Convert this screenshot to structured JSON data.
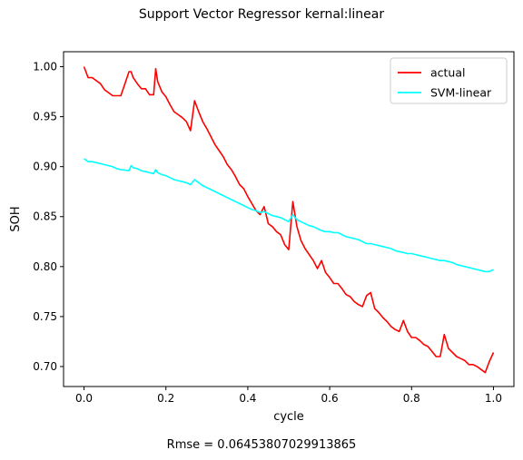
{
  "chart_data": {
    "type": "line",
    "title": "Support Vector Regressor kernal:linear",
    "xlabel": "cycle",
    "ylabel": "SOH",
    "xlim": [
      -0.05,
      1.05
    ],
    "ylim": [
      0.68,
      1.015
    ],
    "x_ticks": [
      0.0,
      0.2,
      0.4,
      0.6,
      0.8,
      1.0
    ],
    "x_tick_labels": [
      "0.0",
      "0.2",
      "0.4",
      "0.6",
      "0.8",
      "1.0"
    ],
    "y_ticks": [
      0.7,
      0.75,
      0.8,
      0.85,
      0.9,
      0.95,
      1.0
    ],
    "y_tick_labels": [
      "0.70",
      "0.75",
      "0.80",
      "0.85",
      "0.90",
      "0.95",
      "1.00"
    ],
    "grid": false,
    "legend_position": "top-right",
    "series": [
      {
        "name": "actual",
        "color": "#ff0000",
        "x": [
          0.0,
          0.01,
          0.02,
          0.04,
          0.05,
          0.07,
          0.08,
          0.09,
          0.11,
          0.115,
          0.12,
          0.13,
          0.14,
          0.15,
          0.16,
          0.17,
          0.175,
          0.18,
          0.19,
          0.2,
          0.21,
          0.22,
          0.23,
          0.24,
          0.25,
          0.26,
          0.27,
          0.28,
          0.29,
          0.3,
          0.31,
          0.32,
          0.33,
          0.34,
          0.35,
          0.36,
          0.37,
          0.38,
          0.39,
          0.4,
          0.41,
          0.42,
          0.43,
          0.44,
          0.45,
          0.46,
          0.47,
          0.48,
          0.49,
          0.5,
          0.51,
          0.52,
          0.53,
          0.54,
          0.55,
          0.56,
          0.57,
          0.58,
          0.59,
          0.6,
          0.61,
          0.62,
          0.63,
          0.64,
          0.65,
          0.66,
          0.67,
          0.68,
          0.69,
          0.7,
          0.71,
          0.72,
          0.73,
          0.74,
          0.75,
          0.76,
          0.77,
          0.78,
          0.79,
          0.8,
          0.81,
          0.82,
          0.83,
          0.84,
          0.85,
          0.86,
          0.87,
          0.88,
          0.89,
          0.9,
          0.91,
          0.92,
          0.93,
          0.94,
          0.95,
          0.96,
          0.97,
          0.98,
          0.99,
          1.0
        ],
        "values": [
          1.0,
          0.989,
          0.989,
          0.983,
          0.977,
          0.971,
          0.971,
          0.971,
          0.995,
          0.995,
          0.989,
          0.983,
          0.978,
          0.978,
          0.972,
          0.972,
          0.998,
          0.985,
          0.975,
          0.97,
          0.962,
          0.955,
          0.952,
          0.949,
          0.945,
          0.936,
          0.966,
          0.955,
          0.945,
          0.938,
          0.93,
          0.922,
          0.916,
          0.91,
          0.902,
          0.897,
          0.89,
          0.882,
          0.878,
          0.87,
          0.863,
          0.856,
          0.852,
          0.86,
          0.843,
          0.84,
          0.835,
          0.832,
          0.822,
          0.817,
          0.865,
          0.84,
          0.826,
          0.818,
          0.812,
          0.806,
          0.798,
          0.806,
          0.794,
          0.789,
          0.783,
          0.783,
          0.778,
          0.772,
          0.77,
          0.765,
          0.762,
          0.76,
          0.771,
          0.774,
          0.758,
          0.754,
          0.749,
          0.745,
          0.74,
          0.737,
          0.735,
          0.746,
          0.735,
          0.729,
          0.729,
          0.726,
          0.722,
          0.72,
          0.715,
          0.71,
          0.71,
          0.732,
          0.718,
          0.714,
          0.71,
          0.708,
          0.706,
          0.702,
          0.702,
          0.7,
          0.697,
          0.694,
          0.705,
          0.714
        ]
      },
      {
        "name": "SVM-linear",
        "color": "#00ffff",
        "x": [
          0.0,
          0.01,
          0.02,
          0.04,
          0.05,
          0.07,
          0.08,
          0.09,
          0.11,
          0.115,
          0.12,
          0.13,
          0.14,
          0.15,
          0.16,
          0.17,
          0.175,
          0.18,
          0.19,
          0.2,
          0.21,
          0.22,
          0.23,
          0.24,
          0.25,
          0.26,
          0.27,
          0.28,
          0.29,
          0.3,
          0.31,
          0.32,
          0.33,
          0.34,
          0.35,
          0.36,
          0.37,
          0.38,
          0.39,
          0.4,
          0.41,
          0.42,
          0.43,
          0.44,
          0.45,
          0.46,
          0.47,
          0.48,
          0.49,
          0.5,
          0.51,
          0.52,
          0.53,
          0.54,
          0.55,
          0.56,
          0.57,
          0.58,
          0.59,
          0.6,
          0.61,
          0.62,
          0.63,
          0.64,
          0.65,
          0.66,
          0.67,
          0.68,
          0.69,
          0.7,
          0.71,
          0.72,
          0.73,
          0.74,
          0.75,
          0.76,
          0.77,
          0.78,
          0.79,
          0.8,
          0.81,
          0.82,
          0.83,
          0.84,
          0.85,
          0.86,
          0.87,
          0.88,
          0.89,
          0.9,
          0.91,
          0.92,
          0.93,
          0.94,
          0.95,
          0.96,
          0.97,
          0.98,
          0.99,
          1.0
        ],
        "values": [
          0.908,
          0.905,
          0.905,
          0.903,
          0.902,
          0.9,
          0.898,
          0.897,
          0.896,
          0.901,
          0.899,
          0.898,
          0.896,
          0.895,
          0.894,
          0.893,
          0.897,
          0.894,
          0.892,
          0.891,
          0.889,
          0.887,
          0.886,
          0.885,
          0.884,
          0.882,
          0.887,
          0.884,
          0.881,
          0.879,
          0.877,
          0.875,
          0.873,
          0.871,
          0.869,
          0.867,
          0.865,
          0.863,
          0.861,
          0.859,
          0.857,
          0.856,
          0.854,
          0.855,
          0.853,
          0.851,
          0.85,
          0.849,
          0.847,
          0.845,
          0.852,
          0.847,
          0.845,
          0.843,
          0.841,
          0.84,
          0.838,
          0.836,
          0.835,
          0.835,
          0.834,
          0.834,
          0.832,
          0.83,
          0.829,
          0.828,
          0.827,
          0.825,
          0.823,
          0.823,
          0.822,
          0.821,
          0.82,
          0.819,
          0.818,
          0.816,
          0.815,
          0.814,
          0.813,
          0.813,
          0.812,
          0.811,
          0.81,
          0.809,
          0.808,
          0.807,
          0.806,
          0.806,
          0.805,
          0.804,
          0.802,
          0.801,
          0.8,
          0.799,
          0.798,
          0.797,
          0.796,
          0.795,
          0.795,
          0.797
        ]
      }
    ]
  },
  "footer": {
    "rmse_text": "Rmse = 0.06453807029913865"
  }
}
